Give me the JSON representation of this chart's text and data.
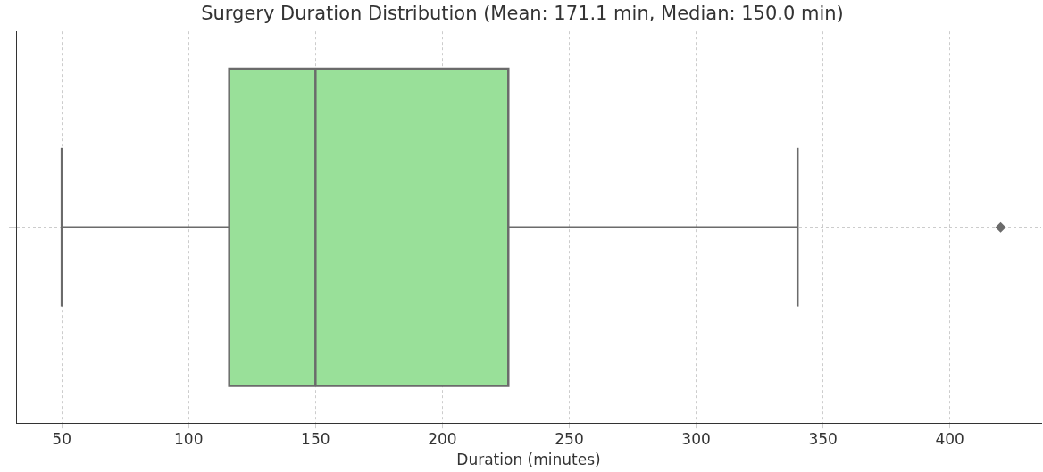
{
  "chart_data": {
    "type": "box",
    "orientation": "horizontal",
    "title": "Surgery Duration Distribution (Mean: 171.1 min, Median: 150.0 min)",
    "xlabel": "Duration (minutes)",
    "categories": [
      null
    ],
    "boxes": [
      {
        "low": 50,
        "q1": 116,
        "median": 150,
        "q3": 226,
        "high": 340,
        "outliers": [
          420
        ]
      }
    ],
    "color": "#99e099",
    "xlim": [
      32,
      436
    ],
    "xticks": [
      50,
      100,
      150,
      200,
      250,
      300,
      350,
      400
    ],
    "grid": true,
    "marker": "diamond"
  }
}
